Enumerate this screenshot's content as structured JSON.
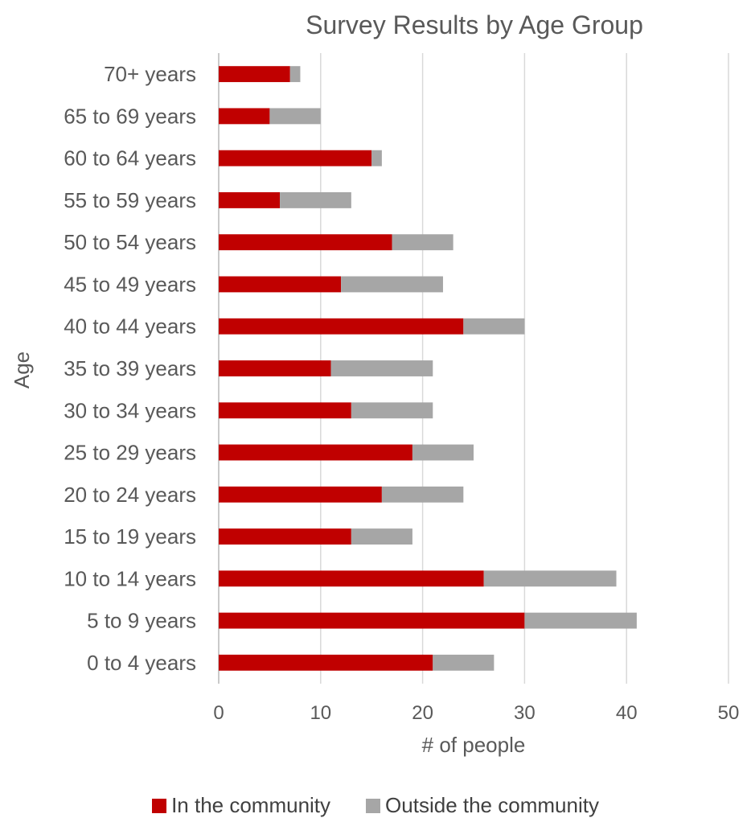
{
  "chart_data": {
    "type": "bar",
    "orientation": "horizontal",
    "stacked": true,
    "title": "Survey Results by Age Group",
    "xlabel": "# of people",
    "ylabel": "Age",
    "xlim": [
      0,
      50
    ],
    "xticks": [
      0,
      10,
      20,
      30,
      40,
      50
    ],
    "grid": true,
    "legend_position": "bottom",
    "categories": [
      "70+ years",
      "65 to 69 years",
      "60 to 64 years",
      "55 to 59 years",
      "50 to 54 years",
      "45 to 49 years",
      "40 to 44 years",
      "35 to 39 years",
      "30 to 34 years",
      "25 to 29 years",
      "20 to 24 years",
      "15 to 19 years",
      "10 to 14 years",
      "5 to 9 years",
      "0 to 4 years"
    ],
    "series": [
      {
        "name": "In the community",
        "color": "#c00000",
        "values": [
          7,
          5,
          15,
          6,
          17,
          12,
          24,
          11,
          13,
          19,
          16,
          13,
          26,
          30,
          21
        ]
      },
      {
        "name": "Outside the community",
        "color": "#a6a6a6",
        "values": [
          1,
          5,
          1,
          7,
          6,
          10,
          6,
          10,
          8,
          6,
          8,
          6,
          13,
          11,
          6
        ]
      }
    ]
  }
}
